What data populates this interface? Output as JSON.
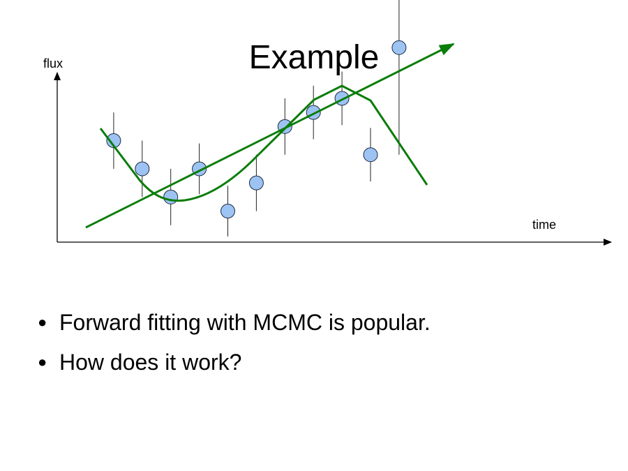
{
  "slide": {
    "title": "Example",
    "bullets": [
      "Forward fitting with MCMC is popular.",
      "How does it work?"
    ]
  },
  "figure": {
    "y_axis_label": "flux",
    "x_axis_label": "time",
    "colors": {
      "curve": "#0a7d0a",
      "point_fill": "#9dc3f2",
      "point_stroke": "#1a2a40",
      "axis": "#000000"
    },
    "data_points": [
      {
        "t": 1,
        "flux": 0.72,
        "err": 0.2
      },
      {
        "t": 2,
        "flux": 0.52,
        "err": 0.2
      },
      {
        "t": 3,
        "flux": 0.32,
        "err": 0.2
      },
      {
        "t": 4,
        "flux": 0.52,
        "err": 0.18
      },
      {
        "t": 5,
        "flux": 0.22,
        "err": 0.18
      },
      {
        "t": 6,
        "flux": 0.42,
        "err": 0.2
      },
      {
        "t": 7,
        "flux": 0.82,
        "err": 0.2
      },
      {
        "t": 8,
        "flux": 0.92,
        "err": 0.19
      },
      {
        "t": 9,
        "flux": 1.02,
        "err": 0.19
      },
      {
        "t": 10,
        "flux": 0.62,
        "err": 0.19
      },
      {
        "t": 11,
        "flux": 1.38,
        "err": 0.76
      }
    ]
  }
}
